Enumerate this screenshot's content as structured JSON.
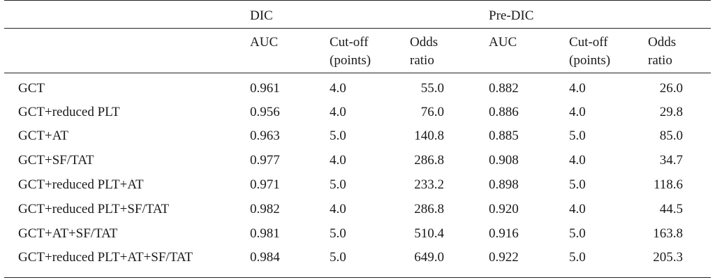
{
  "groups": [
    "DIC",
    "Pre-DIC"
  ],
  "columns": [
    {
      "line1": "AUC",
      "line2": ""
    },
    {
      "line1": "Cut-off",
      "line2": "(points)"
    },
    {
      "line1": "Odds",
      "line2": "ratio"
    },
    {
      "line1": "AUC",
      "line2": ""
    },
    {
      "line1": "Cut-off",
      "line2": "(points)"
    },
    {
      "line1": "Odds",
      "line2": "ratio"
    }
  ],
  "rows": [
    {
      "label": "GCT",
      "values": [
        "0.961",
        "4.0",
        "55.0",
        "0.882",
        "4.0",
        "26.0"
      ]
    },
    {
      "label": "GCT+reduced PLT",
      "values": [
        "0.956",
        "4.0",
        "76.0",
        "0.886",
        "4.0",
        "29.8"
      ]
    },
    {
      "label": "GCT+AT",
      "values": [
        "0.963",
        "5.0",
        "140.8",
        "0.885",
        "5.0",
        "85.0"
      ]
    },
    {
      "label": "GCT+SF/TAT",
      "values": [
        "0.977",
        "4.0",
        "286.8",
        "0.908",
        "4.0",
        "34.7"
      ]
    },
    {
      "label": "GCT+reduced PLT+AT",
      "values": [
        "0.971",
        "5.0",
        "233.2",
        "0.898",
        "5.0",
        "118.6"
      ]
    },
    {
      "label": "GCT+reduced PLT+SF/TAT",
      "values": [
        "0.982",
        "4.0",
        "286.8",
        "0.920",
        "4.0",
        "44.5"
      ]
    },
    {
      "label": "GCT+AT+SF/TAT",
      "values": [
        "0.981",
        "5.0",
        "510.4",
        "0.916",
        "5.0",
        "163.8"
      ]
    },
    {
      "label": "GCT+reduced PLT+AT+SF/TAT",
      "values": [
        "0.984",
        "5.0",
        "649.0",
        "0.922",
        "5.0",
        "205.3"
      ]
    }
  ]
}
